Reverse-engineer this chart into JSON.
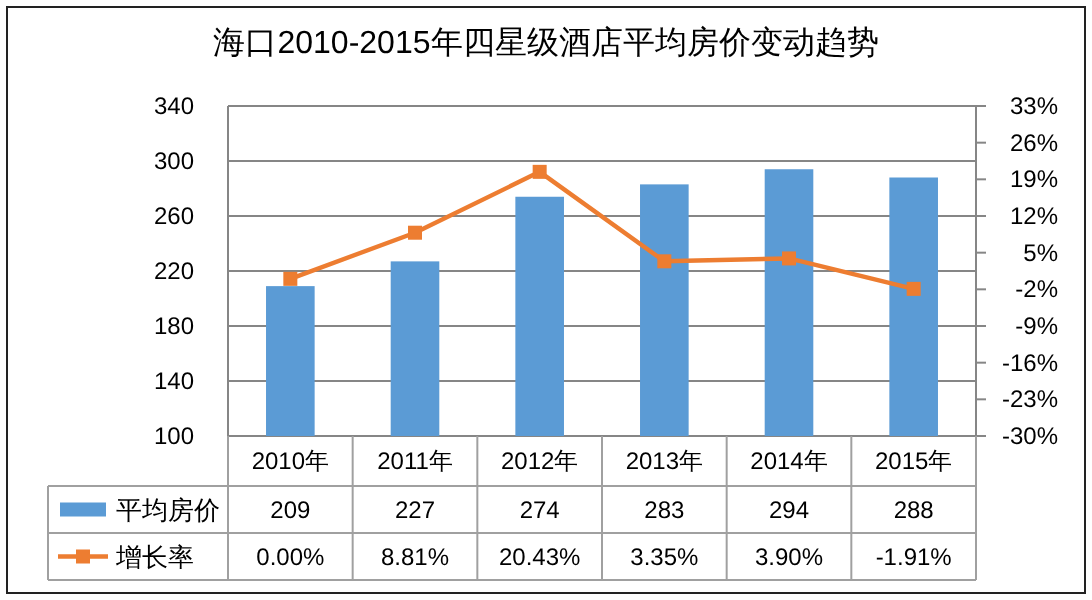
{
  "chart_data": {
    "type": "bar",
    "title": "海口2010-2015年四星级酒店平均房价变动趋势",
    "categories": [
      "2010年",
      "2011年",
      "2012年",
      "2013年",
      "2014年",
      "2015年"
    ],
    "series": [
      {
        "name": "平均房价",
        "color": "#5b9bd5",
        "values": [
          209,
          227,
          274,
          283,
          294,
          288
        ],
        "value_labels": [
          "209",
          "227",
          "274",
          "283",
          "294",
          "288"
        ]
      },
      {
        "name": "增长率",
        "type": "line",
        "axis": "y2",
        "color": "#ed7d31",
        "marker": "square",
        "values": [
          0.0,
          8.81,
          20.43,
          3.35,
          3.9,
          -1.91
        ],
        "value_labels": [
          "0.00%",
          "8.81%",
          "20.43%",
          "3.35%",
          "3.90%",
          "-1.91%"
        ]
      }
    ],
    "ylim": [
      100,
      340
    ],
    "yticks": [
      100,
      140,
      180,
      220,
      260,
      300,
      340
    ],
    "y2lim": [
      -30,
      33
    ],
    "y2ticks": [
      {
        "value": -30,
        "label": "-30%"
      },
      {
        "value": -23,
        "label": "-23%"
      },
      {
        "value": -16,
        "label": "-16%"
      },
      {
        "value": -9,
        "label": "-9%"
      },
      {
        "value": -2,
        "label": "-2%"
      },
      {
        "value": 5,
        "label": "5%"
      },
      {
        "value": 12,
        "label": "12%"
      },
      {
        "value": 19,
        "label": "19%"
      },
      {
        "value": 26,
        "label": "26%"
      },
      {
        "value": 33,
        "label": "33%"
      }
    ],
    "grid": "y",
    "legend": "bottom"
  }
}
